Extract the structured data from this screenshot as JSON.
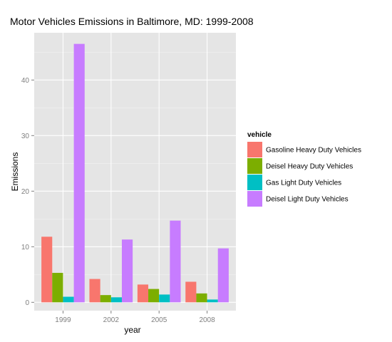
{
  "chart_data": {
    "type": "bar",
    "title": "Motor Vehicles Emissions in Baltimore, MD: 1999-2008",
    "xlabel": "year",
    "ylabel": "Emissions",
    "categories": [
      "1999",
      "2002",
      "2005",
      "2008"
    ],
    "yticks": [
      0,
      10,
      20,
      30,
      40
    ],
    "ylim": [
      -1.5,
      48.5
    ],
    "grid": true,
    "legend": {
      "title": "vehicle",
      "position": "right"
    },
    "series": [
      {
        "name": "Gasoline Heavy Duty Vehicles",
        "color": "#F8766D",
        "values": [
          11.8,
          4.2,
          3.2,
          3.7
        ]
      },
      {
        "name": "Deisel Heavy Duty Vehicles",
        "color": "#7CAE00",
        "values": [
          5.3,
          1.3,
          2.4,
          1.6
        ]
      },
      {
        "name": "Gas Light Duty Vehicles",
        "color": "#00BFC4",
        "values": [
          1.0,
          0.9,
          1.4,
          0.5
        ]
      },
      {
        "name": "Deisel Light Duty Vehicles",
        "color": "#C77CFF",
        "values": [
          46.5,
          11.3,
          14.7,
          9.7
        ]
      }
    ]
  }
}
